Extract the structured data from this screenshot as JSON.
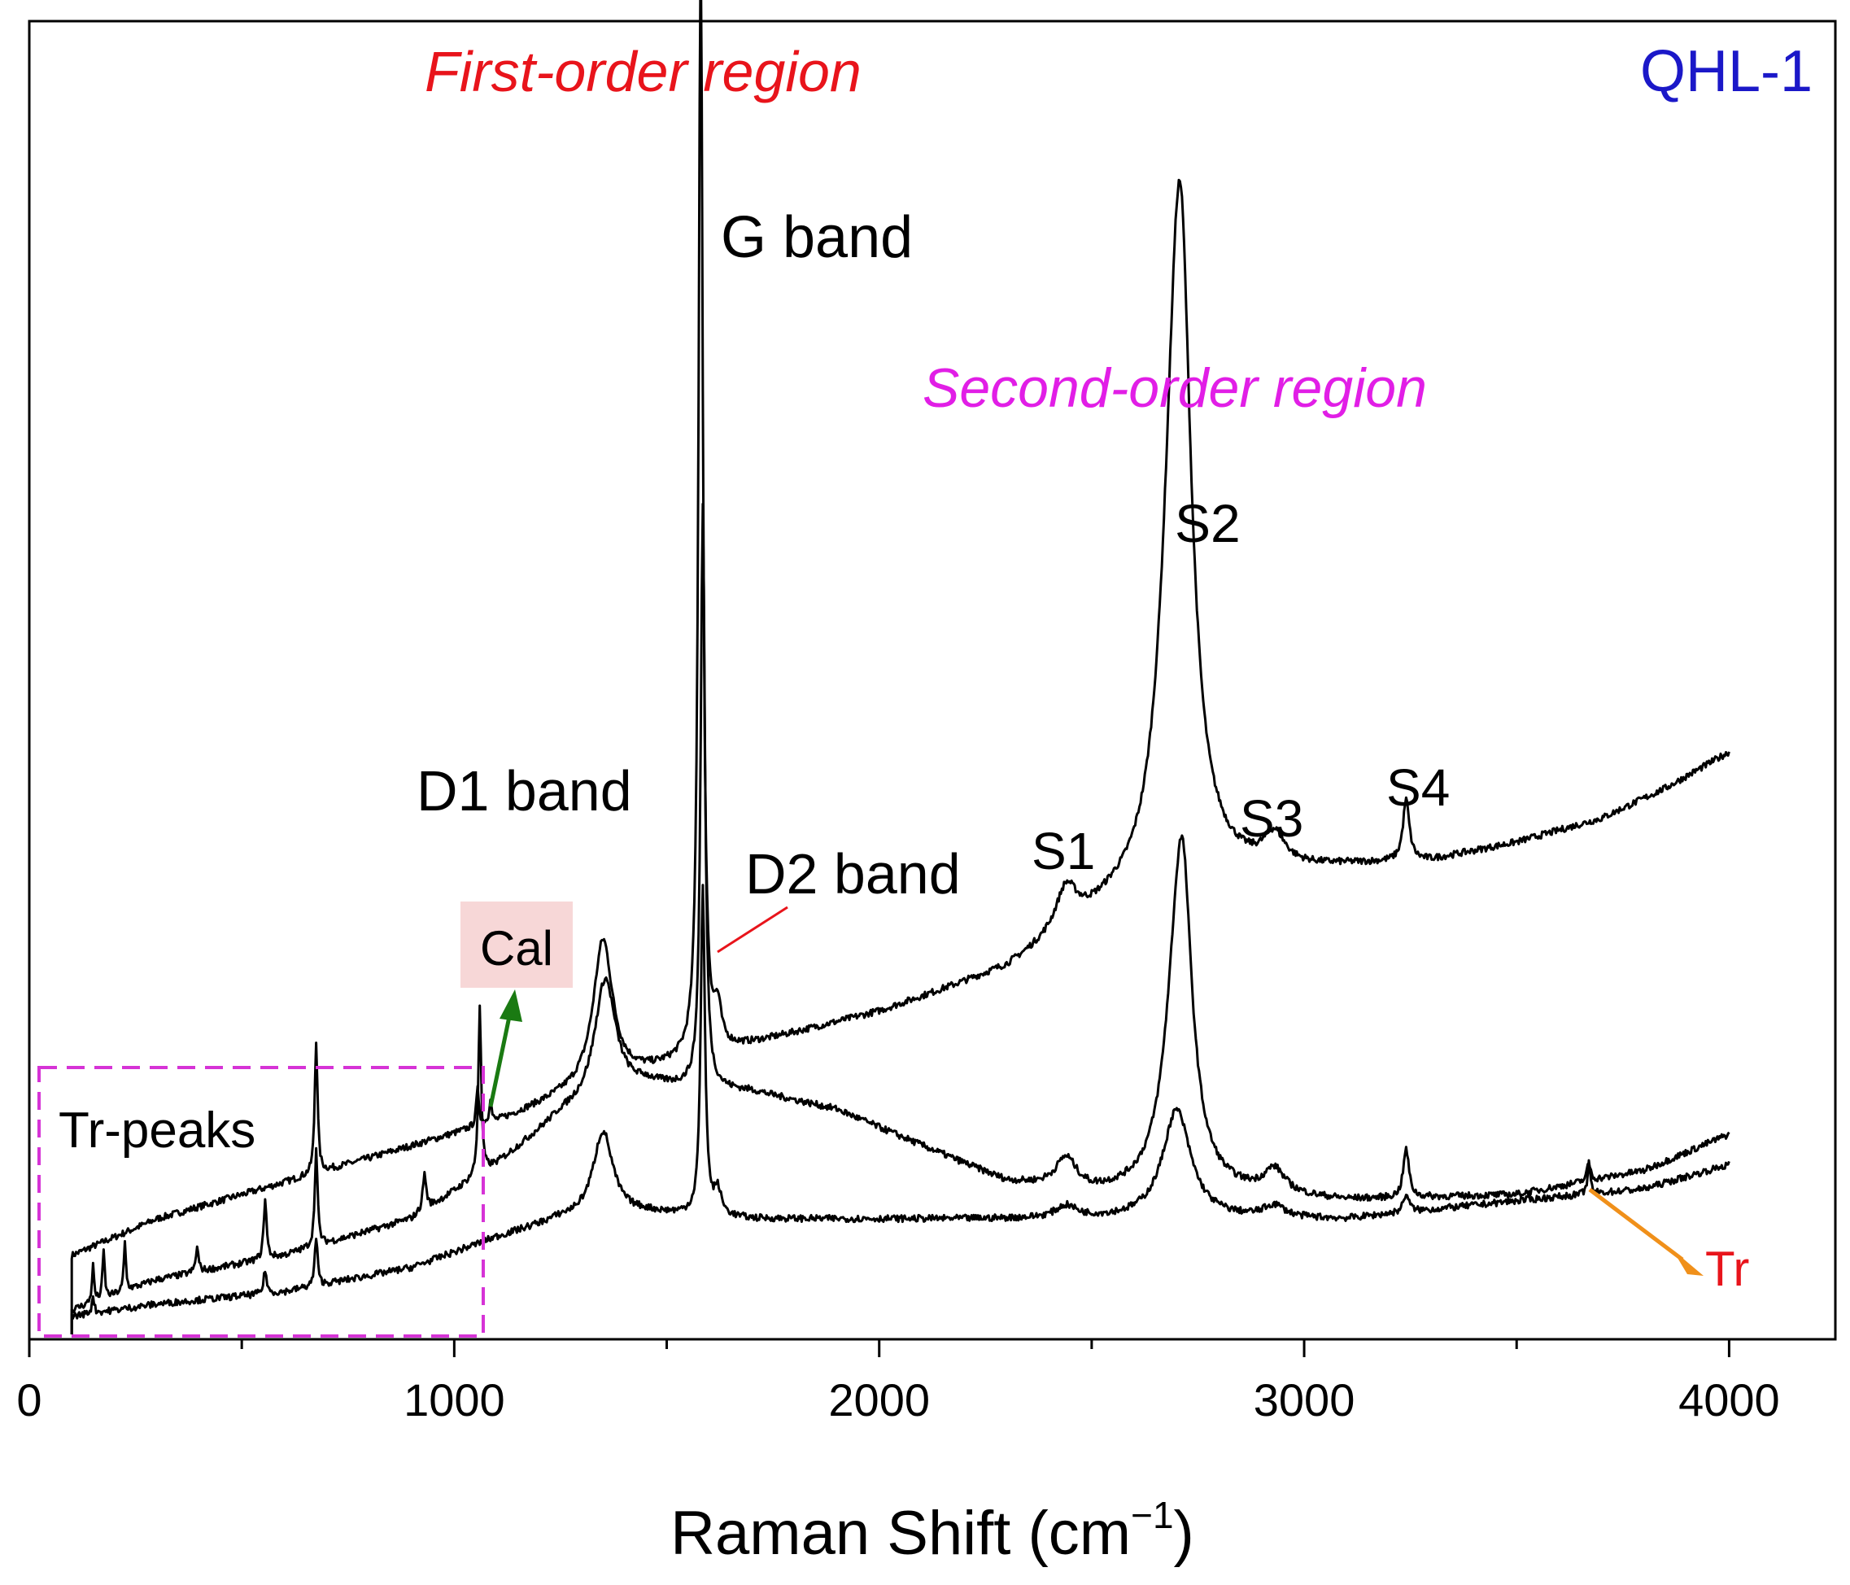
{
  "chart_data": {
    "type": "line",
    "title": "",
    "sample_label": "QHL-1",
    "xlabel": "Raman Shift (cm",
    "xlabel_sup": "−1",
    "xlabel_close": ")",
    "ylabel": "",
    "xlim": [
      0,
      4250
    ],
    "ylim": [
      0,
      100
    ],
    "x_ticks": [
      0,
      1000,
      2000,
      3000,
      4000
    ],
    "x_tick_labels": [
      "0",
      "1000",
      "2000",
      "3000",
      "4000"
    ],
    "x_minor_ticks": [
      500,
      1500,
      2500,
      3500
    ],
    "y_ticks_shown": false,
    "grid": false,
    "legend": "none",
    "colors": {
      "series": "#000000",
      "first_order": "#e8141b",
      "second_order": "#e11ee6",
      "sample": "#1b18c8",
      "cal_arrow": "#1a7a12",
      "cal_box": "#f7d7d7",
      "tr_arrow": "#f0901a",
      "tr_text": "#e8141b",
      "d2_line": "#e8141b",
      "box_dash": "#d633d6"
    },
    "series": [
      {
        "baseline": [
          [
            100,
            6.5
          ],
          [
            300,
            9.5
          ],
          [
            600,
            12.5
          ],
          [
            900,
            15.5
          ],
          [
            1100,
            17.5
          ],
          [
            1250,
            19.5
          ],
          [
            1600,
            23.0
          ],
          [
            2000,
            26.5
          ],
          [
            2300,
            30.0
          ],
          [
            2550,
            35.0
          ],
          [
            2800,
            37.5
          ],
          [
            3100,
            38.5
          ],
          [
            3300,
            39.0
          ],
          [
            3500,
            40.5
          ],
          [
            3700,
            42.5
          ],
          [
            3850,
            45.0
          ],
          [
            4000,
            48.0
          ]
        ],
        "peaks": [
          {
            "x": 1350,
            "h": 12,
            "w": 28
          },
          {
            "x": 1580,
            "h": 92,
            "w": 6
          },
          {
            "x": 1620,
            "h": 3,
            "w": 10
          },
          {
            "x": 2440,
            "h": 3.5,
            "w": 30
          },
          {
            "x": 2690,
            "h": 20,
            "w": 40
          },
          {
            "x": 2710,
            "h": 42,
            "w": 30
          },
          {
            "x": 2930,
            "h": 2.5,
            "w": 30
          },
          {
            "x": 3240,
            "h": 5,
            "w": 9
          },
          {
            "x": 675,
            "h": 11,
            "w": 4
          },
          {
            "x": 1055,
            "h": 3,
            "w": 4
          },
          {
            "x": 1085,
            "h": 2,
            "w": 3
          }
        ]
      },
      {
        "baseline": [
          [
            100,
            2.0
          ],
          [
            300,
            4.5
          ],
          [
            600,
            6.5
          ],
          [
            900,
            9.5
          ],
          [
            1100,
            14.0
          ],
          [
            1250,
            18.0
          ],
          [
            1450,
            20.5
          ],
          [
            1700,
            20.0
          ],
          [
            1900,
            18.5
          ],
          [
            2100,
            15.5
          ],
          [
            2300,
            12.5
          ],
          [
            2500,
            11.5
          ],
          [
            2800,
            11.5
          ],
          [
            3100,
            11.0
          ],
          [
            3500,
            11.5
          ],
          [
            3800,
            13.5
          ],
          [
            4000,
            16.5
          ]
        ],
        "peaks": [
          {
            "x": 1355,
            "h": 10,
            "w": 30
          },
          {
            "x": 1585,
            "h": 48,
            "w": 6
          },
          {
            "x": 2440,
            "h": 2.5,
            "w": 30
          },
          {
            "x": 2700,
            "h": 14,
            "w": 38
          },
          {
            "x": 2715,
            "h": 17,
            "w": 25
          },
          {
            "x": 2930,
            "h": 2,
            "w": 30
          },
          {
            "x": 3240,
            "h": 4,
            "w": 8
          },
          {
            "x": 150,
            "h": 3,
            "w": 3
          },
          {
            "x": 175,
            "h": 4,
            "w": 3
          },
          {
            "x": 225,
            "h": 4,
            "w": 3
          },
          {
            "x": 395,
            "h": 2,
            "w": 4
          },
          {
            "x": 555,
            "h": 5,
            "w": 4
          },
          {
            "x": 675,
            "h": 8,
            "w": 4
          },
          {
            "x": 930,
            "h": 3,
            "w": 5
          },
          {
            "x": 1060,
            "h": 14,
            "w": 4
          },
          {
            "x": 3670,
            "h": 1.5,
            "w": 5
          }
        ]
      },
      {
        "baseline": [
          [
            100,
            1.5
          ],
          [
            300,
            2.5
          ],
          [
            600,
            3.5
          ],
          [
            900,
            5.5
          ],
          [
            1100,
            8.0
          ],
          [
            1250,
            9.5
          ],
          [
            1450,
            10.0
          ],
          [
            1700,
            9.5
          ],
          [
            2000,
            9.5
          ],
          [
            2300,
            9.5
          ],
          [
            2500,
            9.5
          ],
          [
            2800,
            9.5
          ],
          [
            3100,
            9.5
          ],
          [
            3500,
            11.0
          ],
          [
            3800,
            12.0
          ],
          [
            4000,
            14.0
          ]
        ],
        "peaks": [
          {
            "x": 1350,
            "h": 7,
            "w": 28
          },
          {
            "x": 1585,
            "h": 27,
            "w": 6
          },
          {
            "x": 1620,
            "h": 2,
            "w": 10
          },
          {
            "x": 2440,
            "h": 1,
            "w": 30
          },
          {
            "x": 2700,
            "h": 9,
            "w": 40
          },
          {
            "x": 2930,
            "h": 1,
            "w": 30
          },
          {
            "x": 3240,
            "h": 1.5,
            "w": 8
          },
          {
            "x": 150,
            "h": 1.5,
            "w": 3
          },
          {
            "x": 555,
            "h": 2,
            "w": 4
          },
          {
            "x": 675,
            "h": 4,
            "w": 4
          },
          {
            "x": 3670,
            "h": 2.5,
            "w": 4
          }
        ]
      }
    ],
    "annotations": {
      "first_order": "First-order region",
      "second_order": "Second-order region",
      "g_band": "G band",
      "d1_band": "D1 band",
      "d2_band": "D2 band",
      "s1": "S1",
      "s2": "S2",
      "s3": "S3",
      "s4": "S4",
      "cal": "Cal",
      "tr_peaks": "Tr-peaks",
      "tr": "Tr"
    }
  }
}
